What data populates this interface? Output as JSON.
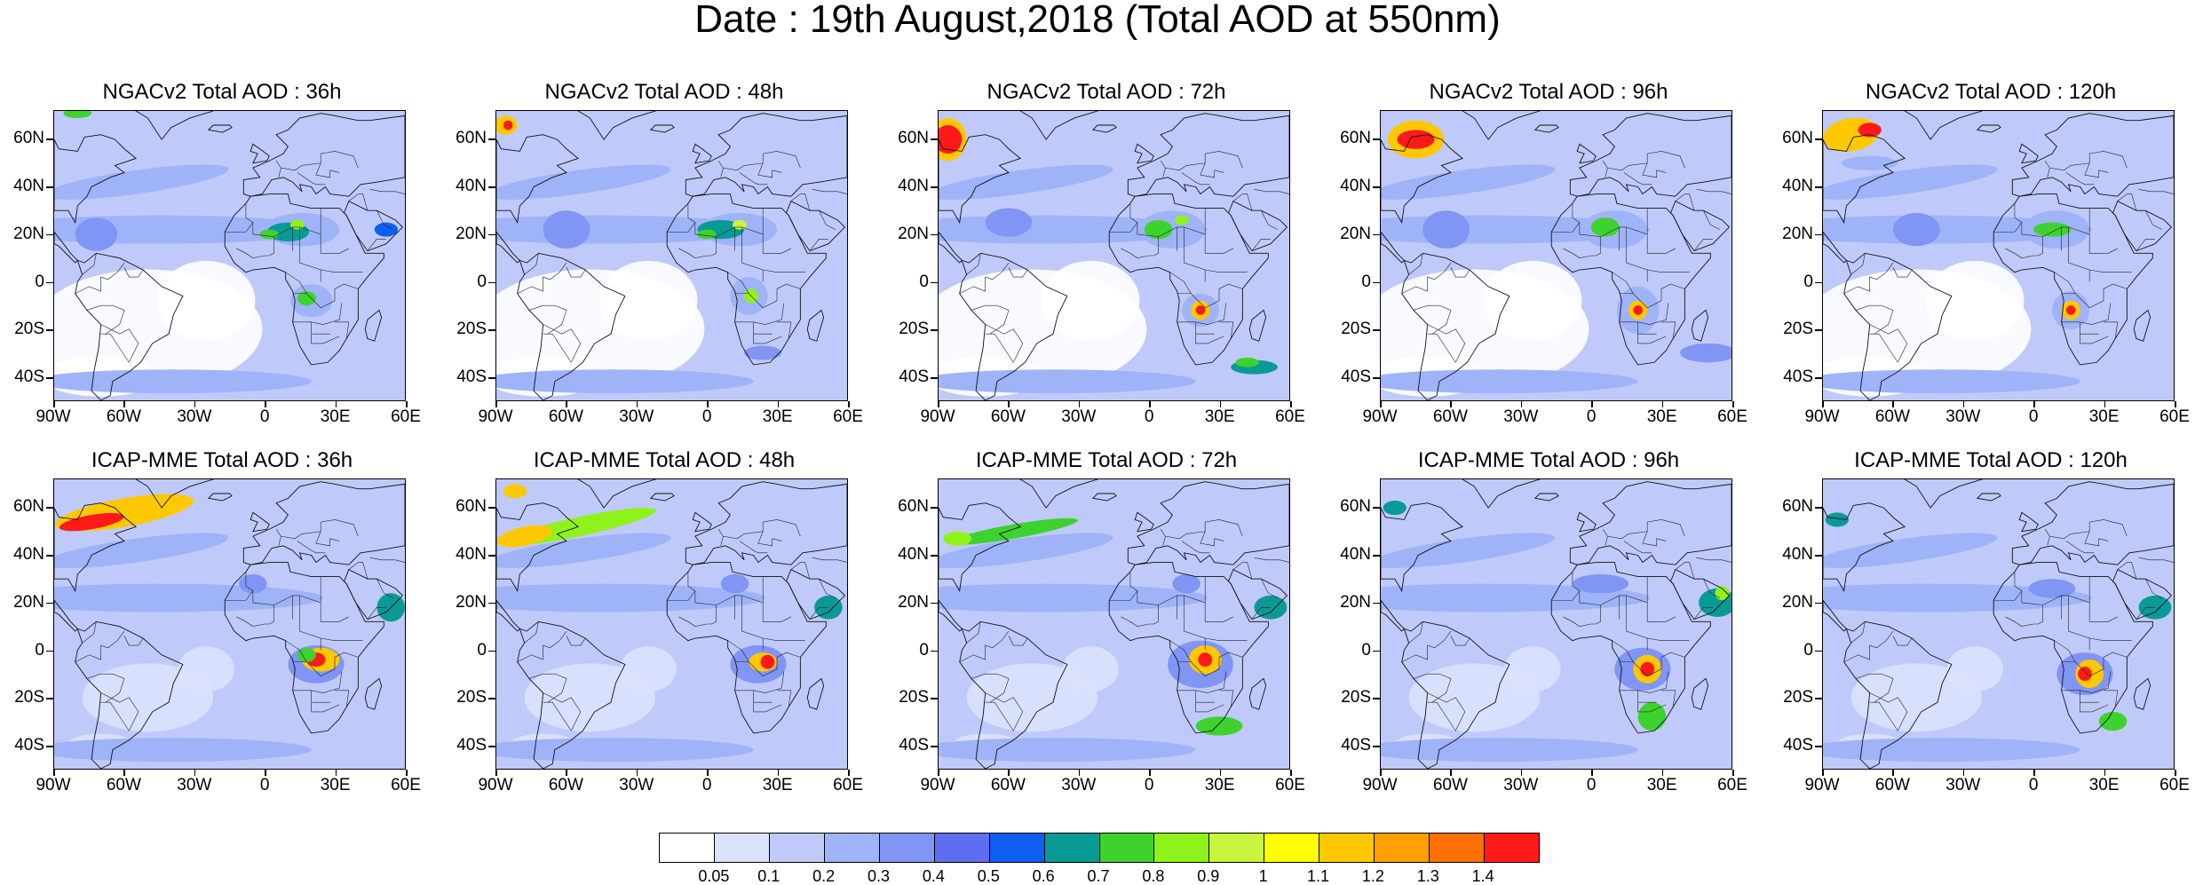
{
  "title": "Date : 19th August,2018 (Total AOD at 550nm)",
  "y_axis_labels": [
    "60N",
    "40N",
    "20N",
    "0",
    "20S",
    "40S"
  ],
  "y_axis_values": [
    60,
    40,
    20,
    0,
    -20,
    -40
  ],
  "x_axis_labels": [
    "90W",
    "60W",
    "30W",
    "0",
    "30E",
    "60E"
  ],
  "x_axis_values": [
    -90,
    -60,
    -30,
    0,
    30,
    60
  ],
  "map_extent": {
    "lon": [
      -90,
      60
    ],
    "lat": [
      -50,
      72
    ]
  },
  "panels": [
    {
      "title": "NGACv2 Total AOD : 36h"
    },
    {
      "title": "NGACv2 Total AOD : 48h"
    },
    {
      "title": "NGACv2 Total AOD : 72h"
    },
    {
      "title": "NGACv2 Total AOD : 96h"
    },
    {
      "title": "NGACv2 Total AOD : 120h"
    },
    {
      "title": "ICAP-MME Total AOD : 36h"
    },
    {
      "title": "ICAP-MME Total AOD : 48h"
    },
    {
      "title": "ICAP-MME Total AOD : 72h"
    },
    {
      "title": "ICAP-MME Total AOD : 96h"
    },
    {
      "title": "ICAP-MME Total AOD : 120h"
    }
  ],
  "colorbar": {
    "colors": [
      "#ffffff",
      "#dbe2fd",
      "#bfcafb",
      "#9fb3f8",
      "#8095f4",
      "#5f6df0",
      "#0f5ef2",
      "#0a9a96",
      "#3ed22e",
      "#8ff21a",
      "#c8f63c",
      "#ffff00",
      "#ffc800",
      "#ffa000",
      "#ff7000",
      "#ff1a1a"
    ],
    "labels": [
      "0.05",
      "0.1",
      "0.2",
      "0.3",
      "0.4",
      "0.5",
      "0.6",
      "0.7",
      "0.8",
      "0.9",
      "1",
      "1.1",
      "1.2",
      "1.3",
      "1.4"
    ]
  }
}
